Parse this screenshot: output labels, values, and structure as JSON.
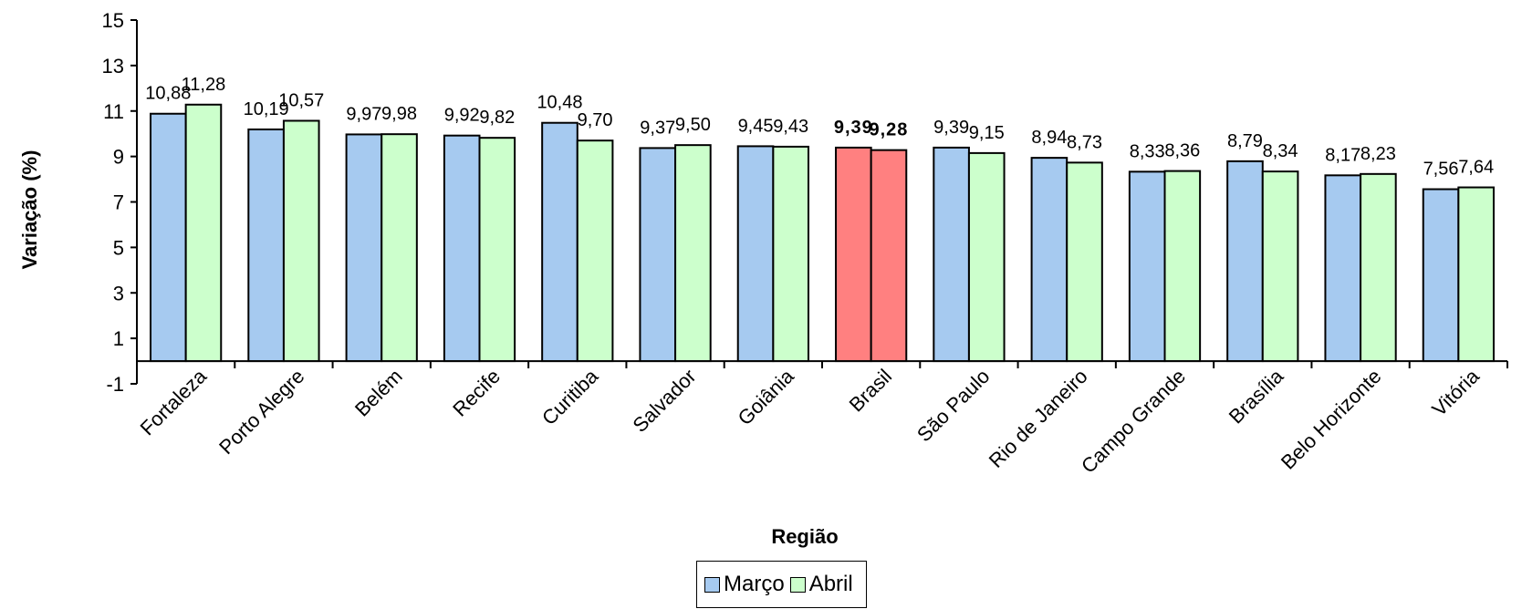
{
  "chart_data": {
    "type": "bar",
    "title": "",
    "xlabel": "Região",
    "ylabel": "Variação (%)",
    "ylim": [
      -1,
      15
    ],
    "yticks": [
      -1,
      1,
      3,
      5,
      7,
      9,
      11,
      13,
      15
    ],
    "grid": false,
    "legend_position": "bottom",
    "categories": [
      "Fortaleza",
      "Porto Alegre",
      "Belém",
      "Recife",
      "Curitiba",
      "Salvador",
      "Goiânia",
      "Brasil",
      "São Paulo",
      "Rio de Janeiro",
      "Campo Grande",
      "Brasília",
      "Belo Horizonte",
      "Vitória"
    ],
    "highlight_category": "Brasil",
    "highlight_color": "#ff8080",
    "series": [
      {
        "name": "Março",
        "color": "#a6caf0",
        "values": [
          10.88,
          10.19,
          9.97,
          9.92,
          10.48,
          9.37,
          9.45,
          9.39,
          9.39,
          8.94,
          8.33,
          8.79,
          8.17,
          7.56
        ],
        "labels": [
          "10,88",
          "10,19",
          "9,97",
          "9,92",
          "10,48",
          "9,37",
          "9,45",
          "9,39",
          "9,39",
          "8,94",
          "8,33",
          "8,79",
          "8,17",
          "7,56"
        ]
      },
      {
        "name": "Abril",
        "color": "#ccffcc",
        "values": [
          11.28,
          10.57,
          9.98,
          9.82,
          9.7,
          9.5,
          9.43,
          9.28,
          9.15,
          8.73,
          8.36,
          8.34,
          8.23,
          7.64
        ],
        "labels": [
          "11,28",
          "10,57",
          "9,98",
          "9,82",
          "9,70",
          "9,50",
          "9,43",
          "9,28",
          "9,15",
          "8,73",
          "8,36",
          "8,34",
          "8,23",
          "7,64"
        ]
      }
    ]
  }
}
